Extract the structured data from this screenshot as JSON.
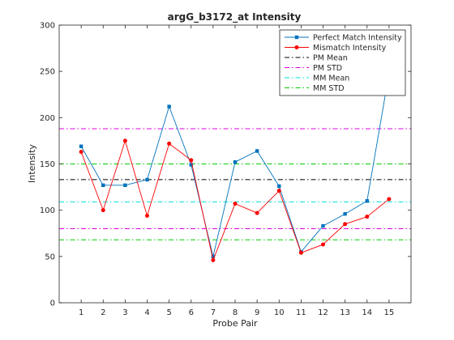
{
  "chart_data": {
    "type": "line",
    "title": "argG_b3172_at Intensity",
    "xlabel": "Probe Pair",
    "ylabel": "Intensity",
    "x": [
      1,
      2,
      3,
      4,
      5,
      6,
      7,
      8,
      9,
      10,
      11,
      12,
      13,
      14,
      15
    ],
    "xlim": [
      0,
      16
    ],
    "ylim": [
      0,
      300
    ],
    "xticks": [
      1,
      2,
      3,
      4,
      5,
      6,
      7,
      8,
      9,
      10,
      11,
      12,
      13,
      14,
      15
    ],
    "yticks": [
      0,
      50,
      100,
      150,
      200,
      250,
      300
    ],
    "grid": false,
    "legend_position": "top-right",
    "series": [
      {
        "name": "Perfect Match Intensity",
        "color": "#0072BD",
        "marker": "square",
        "linestyle": "solid",
        "values": [
          169,
          127,
          127,
          133,
          212,
          149,
          50,
          152,
          164,
          126,
          55,
          83,
          96,
          110,
          248
        ]
      },
      {
        "name": "Mismatch Intensity",
        "color": "#FF0000",
        "marker": "circle",
        "linestyle": "solid",
        "values": [
          163,
          100,
          175,
          94,
          172,
          154,
          46,
          107,
          97,
          121,
          54,
          63,
          85,
          93,
          112
        ]
      }
    ],
    "reference_lines": [
      {
        "name": "PM Mean",
        "color": "#000000",
        "linestyle": "dash-dot",
        "y": [
          133
        ]
      },
      {
        "name": "PM STD",
        "color": "#E000E0",
        "linestyle": "dash-dot",
        "y": [
          80,
          188
        ]
      },
      {
        "name": "MM Mean",
        "color": "#00E0E0",
        "linestyle": "dash-dot",
        "y": [
          109
        ]
      },
      {
        "name": "MM STD",
        "color": "#00CC00",
        "linestyle": "dash-dot",
        "y": [
          68,
          150
        ]
      }
    ]
  }
}
